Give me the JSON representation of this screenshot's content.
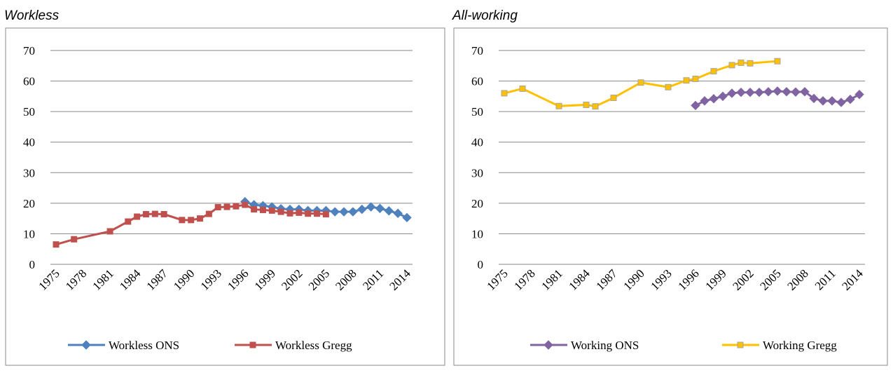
{
  "chart_data": [
    {
      "type": "line",
      "title": "Workless",
      "xlim": [
        1975,
        2014
      ],
      "xticks": [
        1975,
        1978,
        1981,
        1984,
        1987,
        1990,
        1993,
        1996,
        1999,
        2002,
        2005,
        2008,
        2011,
        2014
      ],
      "ylim": [
        0,
        70
      ],
      "yticks": [
        0,
        10,
        20,
        30,
        40,
        50,
        60,
        70
      ],
      "grid": true,
      "legend": "bottom",
      "series": [
        {
          "name": "Workless ONS",
          "color": "#4f81bd",
          "marker": "diamond",
          "x": [
            1996,
            1997,
            1998,
            1999,
            2000,
            2001,
            2002,
            2003,
            2004,
            2005,
            2006,
            2007,
            2008,
            2009,
            2010,
            2011,
            2012,
            2013,
            2014
          ],
          "values": [
            20.5,
            19.5,
            19.2,
            18.8,
            18.2,
            18.0,
            18.0,
            17.6,
            17.6,
            17.6,
            17.2,
            17.2,
            17.2,
            18.0,
            18.8,
            18.3,
            17.5,
            16.7,
            15.3
          ]
        },
        {
          "name": "Workless Gregg",
          "color": "#c0504d",
          "marker": "square",
          "x": [
            1975,
            1977,
            1981,
            1983,
            1984,
            1985,
            1986,
            1987,
            1989,
            1990,
            1991,
            1992,
            1993,
            1994,
            1995,
            1996,
            1997,
            1998,
            1999,
            2000,
            2001,
            2002,
            2003,
            2004,
            2005
          ],
          "values": [
            6.5,
            8.2,
            10.8,
            14.0,
            15.6,
            16.4,
            16.5,
            16.4,
            14.5,
            14.5,
            15.0,
            16.5,
            18.7,
            18.8,
            19.0,
            19.5,
            18.0,
            17.8,
            17.6,
            17.2,
            16.7,
            16.9,
            16.6,
            16.6,
            16.4
          ]
        }
      ]
    },
    {
      "type": "line",
      "title": "All-working",
      "xlim": [
        1975,
        2014
      ],
      "xticks": [
        1975,
        1978,
        1981,
        1984,
        1987,
        1990,
        1993,
        1996,
        1999,
        2002,
        2005,
        2008,
        2011,
        2014
      ],
      "ylim": [
        0,
        70
      ],
      "yticks": [
        0,
        10,
        20,
        30,
        40,
        50,
        60,
        70
      ],
      "grid": true,
      "legend": "bottom",
      "series": [
        {
          "name": "Working ONS",
          "color": "#8064a2",
          "marker": "diamond",
          "x": [
            1996,
            1997,
            1998,
            1999,
            2000,
            2001,
            2002,
            2003,
            2004,
            2005,
            2006,
            2007,
            2008,
            2009,
            2010,
            2011,
            2012,
            2013,
            2014
          ],
          "values": [
            52.0,
            53.5,
            54.2,
            55.0,
            56.0,
            56.3,
            56.3,
            56.3,
            56.5,
            56.7,
            56.5,
            56.4,
            56.5,
            54.3,
            53.5,
            53.5,
            53.0,
            54.0,
            55.6
          ]
        },
        {
          "name": "Working Gregg",
          "color": "#ffc000",
          "marker": "square",
          "x": [
            1975,
            1977,
            1981,
            1984,
            1985,
            1987,
            1990,
            1993,
            1995,
            1996,
            1998,
            2000,
            2001,
            2002,
            2005
          ],
          "values": [
            56.0,
            57.5,
            51.8,
            52.2,
            51.7,
            54.5,
            59.5,
            58.0,
            60.2,
            60.7,
            63.2,
            65.2,
            66.0,
            65.8,
            66.5
          ]
        }
      ]
    }
  ]
}
